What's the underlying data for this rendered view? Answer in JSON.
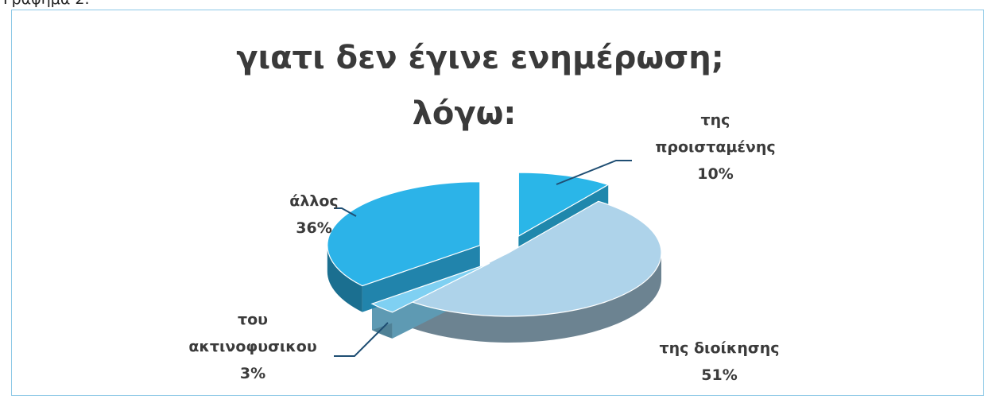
{
  "caption": "Γράφημα 2.",
  "chart_data": {
    "type": "pie",
    "title_line1": "γιατι δεν έγινε ενημέρωση;",
    "title_line2": "λόγω:",
    "slices": [
      {
        "label_line1": "της",
        "label_line2": "προισταμένης",
        "percent_label": "10%",
        "value": 10,
        "color": "#2ab6e8"
      },
      {
        "label_line1": "της διοίκησης",
        "label_line2": "",
        "percent_label": "51%",
        "value": 51,
        "color": "#aed3ea"
      },
      {
        "label_line1": "του",
        "label_line2": "ακτινοφυσικου",
        "percent_label": "3%",
        "value": 3,
        "color": "#7fd0f2"
      },
      {
        "label_line1": "άλλος",
        "label_line2": "",
        "percent_label": "36%",
        "value": 36,
        "color": "#2cb3e8"
      }
    ]
  }
}
